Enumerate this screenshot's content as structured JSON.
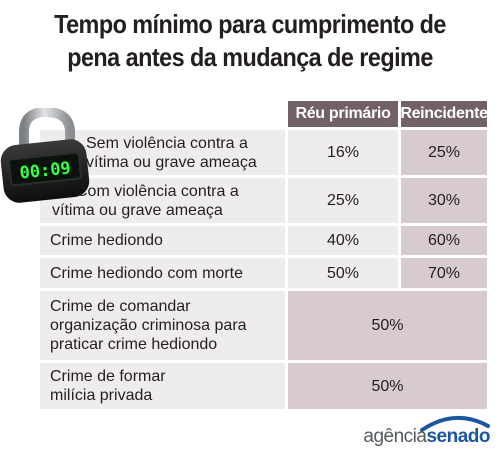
{
  "title": {
    "line1": "Tempo mínimo para cumprimento de",
    "line2": "pena antes da mudança de regime"
  },
  "table": {
    "headers": [
      "Réu primário",
      "Reincidente"
    ],
    "rows": [
      {
        "label": [
          "Sem violência contra a",
          "vítima ou grave ameaça"
        ],
        "primario": "16%",
        "reincidente": "25%"
      },
      {
        "label": [
          "Com violência contra a",
          "vítima ou grave ameaça"
        ],
        "primario": "25%",
        "reincidente": "30%"
      },
      {
        "label": [
          "Crime hediondo"
        ],
        "primario": "40%",
        "reincidente": "60%"
      },
      {
        "label": [
          "Crime hediondo com morte"
        ],
        "primario": "50%",
        "reincidente": "70%"
      },
      {
        "label": [
          "Crime de comandar",
          "organização criminosa para",
          "praticar crime hediondo"
        ],
        "combined": "50%"
      },
      {
        "label": [
          "Crime de formar",
          "milícia privada"
        ],
        "combined": "50%"
      }
    ]
  },
  "lock": {
    "display": "00:09",
    "icon": "padlock-timer-icon",
    "display_color": "#39ff4a"
  },
  "footer": {
    "part1": "agência",
    "part2": "senado",
    "brand_color": "#1d56a0"
  }
}
